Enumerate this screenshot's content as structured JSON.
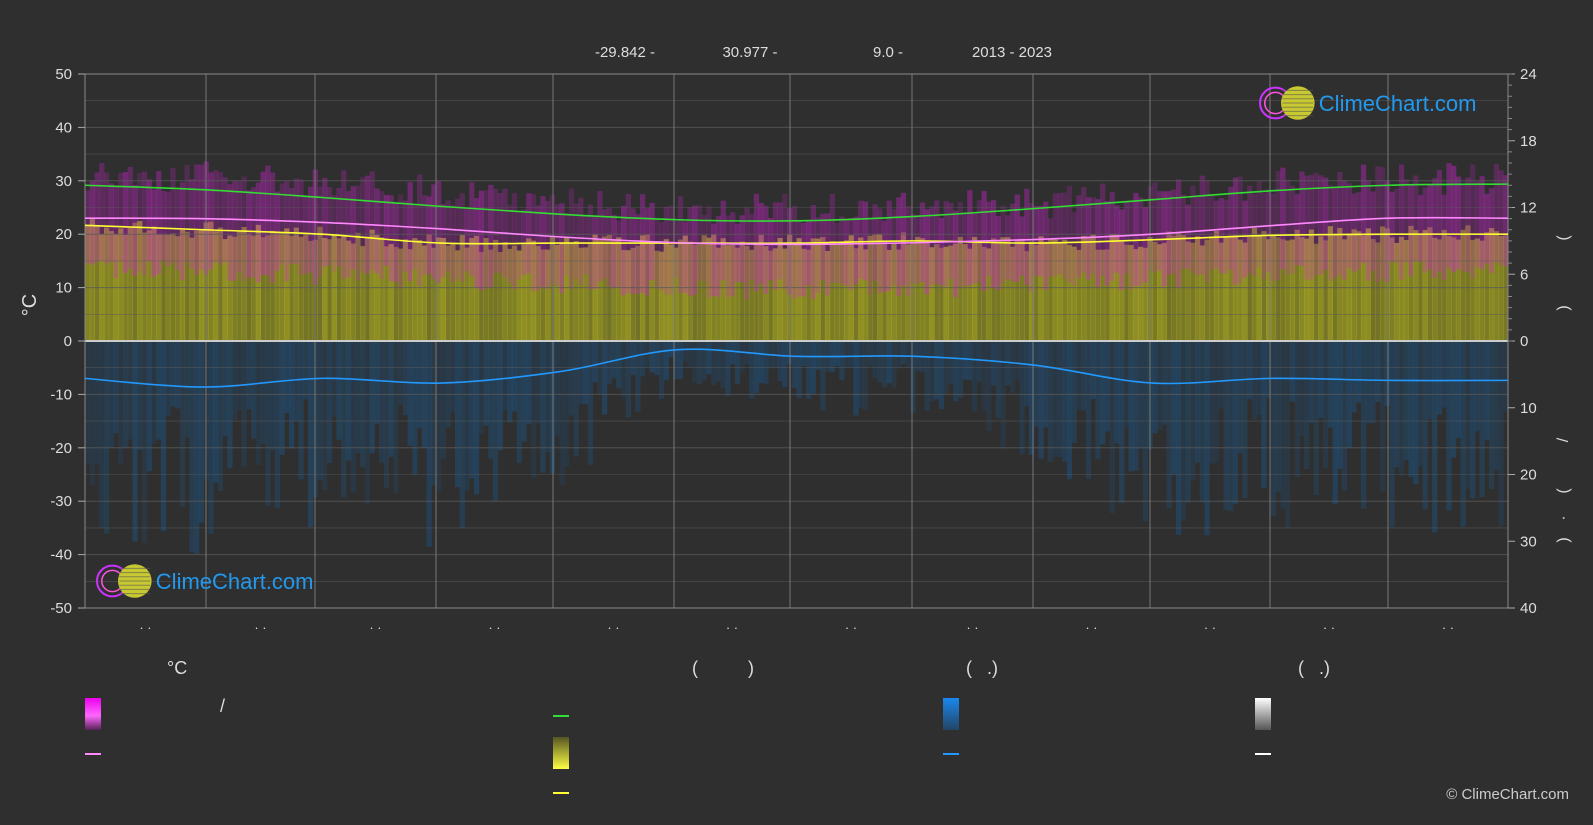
{
  "header": {
    "items": [
      {
        "text": "-29.842 -",
        "xc": 625
      },
      {
        "text": "30.977 -",
        "xc": 750
      },
      {
        "text": "9.0 -",
        "xc": 888
      },
      {
        "text": "2013 - 2023",
        "xc": 1012
      }
    ]
  },
  "left_axis": {
    "label": "°C",
    "ticks": [
      50,
      40,
      30,
      20,
      10,
      0,
      -10,
      -20,
      -30,
      -40,
      -50
    ]
  },
  "right_axis": {
    "top_ticks": [
      24,
      18,
      12,
      6,
      0
    ],
    "bottom_ticks": [
      10,
      20,
      30,
      40
    ],
    "label_glyphs": [
      "(",
      ")",
      "/",
      "(",
      "·",
      ")"
    ]
  },
  "x_tick_labels": [
    "· ·",
    "· ·",
    "· ·",
    "· ·",
    "· ·",
    "· ·",
    "· ·",
    "· ·",
    "· ·",
    "· ·",
    "· ·",
    "· ·"
  ],
  "logo_text": "ClimeChart.com",
  "copyright": "© ClimeChart.com",
  "colors": {
    "background": "#2f2f2f",
    "grid": "#5a5a5a",
    "daylight_line": "#33dd33",
    "sunshine_line": "#ffff33",
    "temp_mean_line": "#ff88ff",
    "precip_line": "#2299ff",
    "temp_band": "#dd22dd",
    "sunshine_band": "#aaaa22",
    "precip_band": "#1f4f78",
    "logo_text": "#2299ee"
  },
  "legend": {
    "headers": [
      {
        "text": "°C",
        "x": 167,
        "y": 668
      },
      {
        "text": "(          )",
        "x": 692,
        "y": 668
      },
      {
        "text": "(   .)",
        "x": 966,
        "y": 668
      },
      {
        "text": "(   .)",
        "x": 1298,
        "y": 668
      }
    ],
    "extra_texts": [
      {
        "text": "/",
        "x": 220,
        "y": 706
      }
    ]
  },
  "chart_data": {
    "type": "area",
    "x": [
      0,
      1,
      2,
      3,
      4,
      5,
      6,
      7,
      8,
      9,
      10,
      11,
      12
    ],
    "x_tick_labels": [
      "· ·",
      "· ·",
      "· ·",
      "· ·",
      "· ·",
      "· ·",
      "· ·",
      "· ·",
      "· ·",
      "· ·",
      "· ·",
      "· ·"
    ],
    "left_ylim": [
      -50,
      50
    ],
    "left_ylabel": "°C",
    "right_top_ylim": [
      0,
      24
    ],
    "right_bottom_ylim": [
      0,
      40
    ],
    "series": [
      {
        "key": "daylight",
        "axis": "right_top",
        "values": [
          14.0,
          13.6,
          12.9,
          12.1,
          11.4,
          10.9,
          10.8,
          11.2,
          11.9,
          12.7,
          13.5,
          14.0,
          14.1
        ]
      },
      {
        "key": "sunshine",
        "axis": "right_top",
        "values": [
          10.4,
          10.0,
          9.6,
          8.8,
          8.8,
          8.8,
          8.8,
          9.0,
          8.8,
          9.1,
          9.5,
          9.6,
          9.6
        ]
      },
      {
        "key": "temp_max_mean",
        "axis": "left",
        "values": [
          24.5,
          24.7,
          24.0,
          22.0,
          20.0,
          18.8,
          19.0,
          19.2,
          19.8,
          21.0,
          23.5,
          24.3,
          24.3
        ]
      },
      {
        "key": "temp_min_mean",
        "axis": "left",
        "values": [
          21.5,
          21.0,
          20.5,
          19.8,
          18.8,
          18.0,
          17.5,
          18.0,
          18.5,
          19.5,
          20.0,
          21.0,
          21.0
        ]
      },
      {
        "key": "temp_mean",
        "axis": "left",
        "values": [
          23.0,
          22.9,
          22.2,
          21.0,
          19.5,
          18.4,
          18.1,
          18.4,
          19.0,
          20.0,
          21.6,
          23.0,
          23.0
        ]
      },
      {
        "key": "precip_mean",
        "axis": "right_bottom",
        "values": [
          5.6,
          6.9,
          5.6,
          6.3,
          4.6,
          1.3,
          2.3,
          2.3,
          3.6,
          6.3,
          5.6,
          5.9,
          5.9
        ]
      }
    ]
  }
}
